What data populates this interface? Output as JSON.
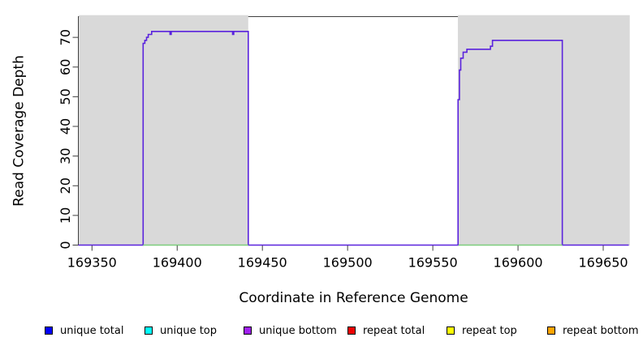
{
  "chart_data": {
    "type": "line",
    "subtype": "step-coverage",
    "title": "",
    "xlabel": "Coordinate in Reference Genome",
    "ylabel": "Read Coverage Depth",
    "xlim": [
      169342,
      169665
    ],
    "ylim": [
      0,
      77
    ],
    "x_ticks": [
      169350,
      169400,
      169450,
      169500,
      169550,
      169600,
      169650
    ],
    "y_ticks": [
      0,
      10,
      20,
      30,
      40,
      50,
      60,
      70
    ],
    "grid": "off",
    "legend_position": "bottom",
    "colors": {
      "axis": "#3f3f3f",
      "shade": "#d9d9d9",
      "coverage_line": "#5a23dd",
      "zero_line_green": "#7ccd7c",
      "background": "#ffffff"
    },
    "shaded_regions": [
      {
        "from": 169342,
        "to": 169441.7
      },
      {
        "from": 169564.7,
        "to": 169665
      }
    ],
    "series": [
      {
        "name": "coverage-step",
        "color": "#5a23dd",
        "points": [
          [
            169342,
            0
          ],
          [
            169380,
            0
          ],
          [
            169380,
            68
          ],
          [
            169381,
            68
          ],
          [
            169381,
            69
          ],
          [
            169382,
            69
          ],
          [
            169382,
            70
          ],
          [
            169383,
            70
          ],
          [
            169383,
            71
          ],
          [
            169385,
            71
          ],
          [
            169385,
            72
          ],
          [
            169395.8,
            72
          ],
          [
            169395.8,
            71
          ],
          [
            169396.5,
            71
          ],
          [
            169396.5,
            72
          ],
          [
            169432.5,
            72
          ],
          [
            169432.5,
            71
          ],
          [
            169433.2,
            71
          ],
          [
            169433.2,
            72
          ],
          [
            169441.7,
            72
          ],
          [
            169441.7,
            0
          ],
          [
            169564.8,
            0
          ],
          [
            169564.8,
            49
          ],
          [
            169565.6,
            49
          ],
          [
            169565.6,
            59
          ],
          [
            169566.4,
            59
          ],
          [
            169566.4,
            63
          ],
          [
            169567.8,
            63
          ],
          [
            169567.8,
            65
          ],
          [
            169570,
            65
          ],
          [
            169570,
            66
          ],
          [
            169583.8,
            66
          ],
          [
            169583.8,
            67
          ],
          [
            169585,
            67
          ],
          [
            169585,
            69
          ],
          [
            169626,
            69
          ],
          [
            169626,
            0
          ],
          [
            169665,
            0
          ]
        ]
      },
      {
        "name": "zero-baseline-green",
        "color": "#7ccd7c",
        "y": 0,
        "segments": [
          [
            169380,
            169441.7
          ],
          [
            169565,
            169626
          ]
        ]
      }
    ],
    "legend": {
      "items": [
        {
          "label": "unique total",
          "color": "#0000ff"
        },
        {
          "label": "unique top",
          "color": "#00ffff"
        },
        {
          "label": "unique bottom",
          "color": "#a020f0"
        },
        {
          "label": "repeat total",
          "color": "#ee0000"
        },
        {
          "label": "repeat top",
          "color": "#ffff00"
        },
        {
          "label": "repeat bottom",
          "color": "#ffa500"
        }
      ]
    }
  }
}
